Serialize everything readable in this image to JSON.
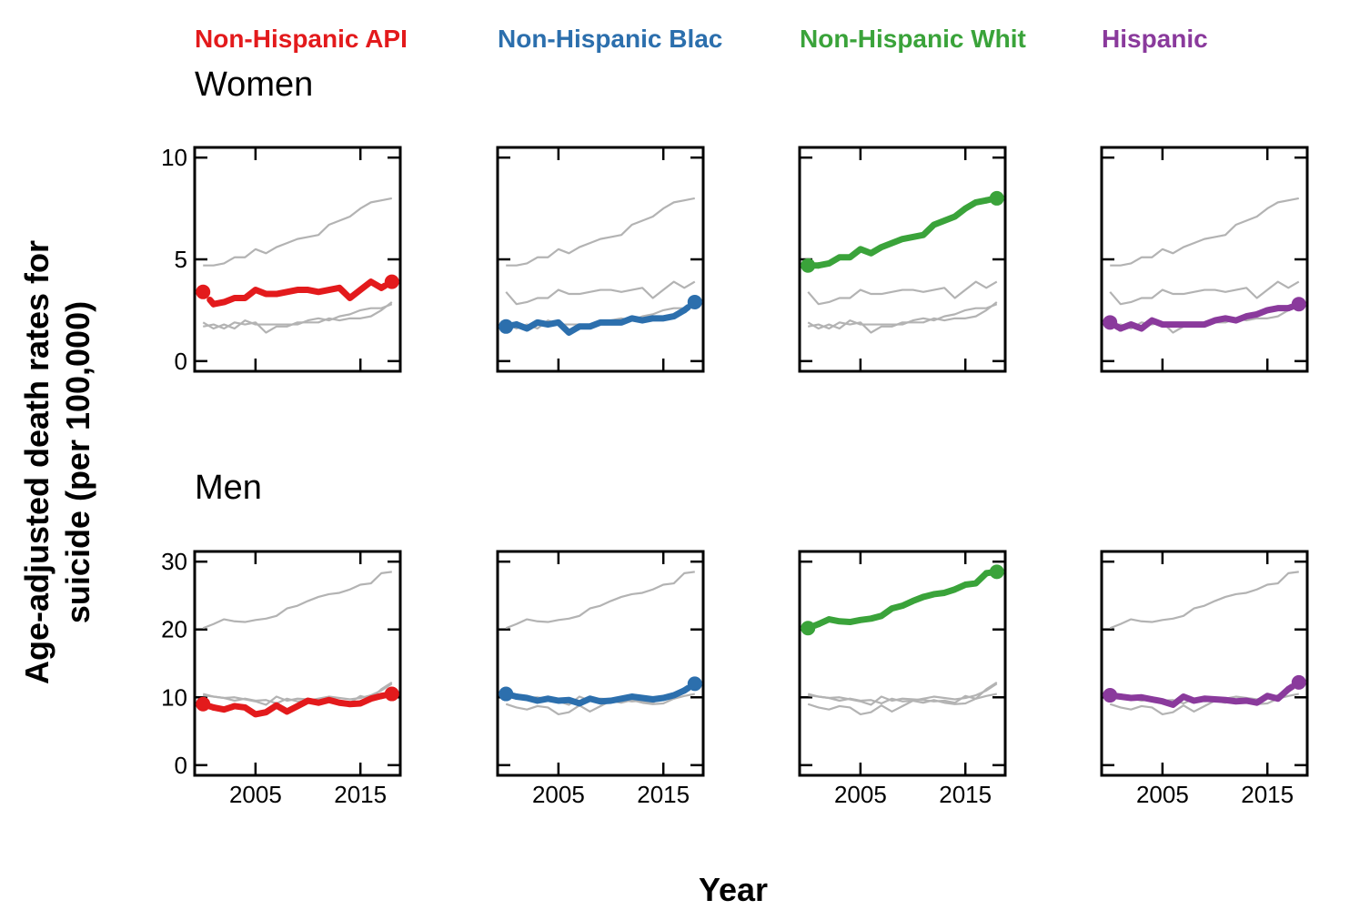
{
  "chart_data": {
    "type": "line",
    "layout": "small-multiples",
    "xlabel": "Year",
    "ylabel_lines": [
      "Age-adjusted death rates for",
      "suicide (per 100,000)"
    ],
    "x": [
      2000,
      2001,
      2002,
      2003,
      2004,
      2005,
      2006,
      2007,
      2008,
      2009,
      2010,
      2011,
      2012,
      2013,
      2014,
      2015,
      2016,
      2017,
      2018
    ],
    "xticks": [
      2005,
      2015
    ],
    "xlim": [
      1999.2,
      2018.8
    ],
    "groups": [
      {
        "name": "Non-Hispanic API",
        "display": "Non-Hispanic API",
        "color": "#e31a1c"
      },
      {
        "name": "Non-Hispanic Black",
        "display": "Non-Hispanic Blac",
        "color": "#2c6fad"
      },
      {
        "name": "Non-Hispanic White",
        "display": "Non-Hispanic Whit",
        "color": "#3aa33a"
      },
      {
        "name": "Hispanic",
        "display": "Hispanic",
        "color": "#8a3a9c"
      }
    ],
    "background_color": "#b3b3b3",
    "panels": [
      {
        "row_title": "Women",
        "ylim": [
          -0.5,
          10.5
        ],
        "yticks": [
          0,
          5,
          10
        ],
        "series": [
          {
            "name": "Non-Hispanic API",
            "values": [
              3.4,
              2.8,
              2.9,
              3.1,
              3.1,
              3.5,
              3.3,
              3.3,
              3.4,
              3.5,
              3.5,
              3.4,
              3.5,
              3.6,
              3.1,
              3.5,
              3.9,
              3.6,
              3.9
            ]
          },
          {
            "name": "Non-Hispanic Black",
            "values": [
              1.7,
              1.8,
              1.6,
              1.9,
              1.8,
              1.9,
              1.4,
              1.7,
              1.7,
              1.9,
              1.9,
              1.9,
              2.1,
              2.0,
              2.1,
              2.1,
              2.2,
              2.5,
              2.9
            ]
          },
          {
            "name": "Non-Hispanic White",
            "values": [
              4.7,
              4.7,
              4.8,
              5.1,
              5.1,
              5.5,
              5.3,
              5.6,
              5.8,
              6.0,
              6.1,
              6.2,
              6.7,
              6.9,
              7.1,
              7.5,
              7.8,
              7.9,
              8.0
            ]
          },
          {
            "name": "Hispanic",
            "values": [
              1.9,
              1.6,
              1.8,
              1.6,
              2.0,
              1.8,
              1.8,
              1.8,
              1.8,
              1.8,
              2.0,
              2.1,
              2.0,
              2.2,
              2.3,
              2.5,
              2.6,
              2.6,
              2.8
            ]
          }
        ]
      },
      {
        "row_title": "Men",
        "ylim": [
          -1.5,
          31.5
        ],
        "yticks": [
          0,
          10,
          20,
          30
        ],
        "series": [
          {
            "name": "Non-Hispanic API",
            "values": [
              9.0,
              8.5,
              8.2,
              8.7,
              8.5,
              7.5,
              7.8,
              8.8,
              7.9,
              8.7,
              9.5,
              9.2,
              9.6,
              9.2,
              9.0,
              9.1,
              9.8,
              10.2,
              10.5
            ]
          },
          {
            "name": "Non-Hispanic Black",
            "values": [
              10.5,
              10.1,
              9.9,
              9.5,
              9.8,
              9.5,
              9.6,
              9.1,
              9.8,
              9.4,
              9.5,
              9.8,
              10.1,
              9.9,
              9.7,
              9.9,
              10.3,
              11.0,
              12.0
            ]
          },
          {
            "name": "Non-Hispanic White",
            "values": [
              20.2,
              20.8,
              21.5,
              21.2,
              21.1,
              21.4,
              21.6,
              22.0,
              23.1,
              23.5,
              24.2,
              24.8,
              25.2,
              25.4,
              25.9,
              26.6,
              26.8,
              28.3,
              28.5
            ]
          },
          {
            "name": "Hispanic",
            "values": [
              10.3,
              10.1,
              9.9,
              10.0,
              9.7,
              9.4,
              8.9,
              10.1,
              9.5,
              9.8,
              9.7,
              9.6,
              9.4,
              9.5,
              9.2,
              10.2,
              9.8,
              11.2,
              12.2
            ]
          }
        ]
      }
    ]
  }
}
